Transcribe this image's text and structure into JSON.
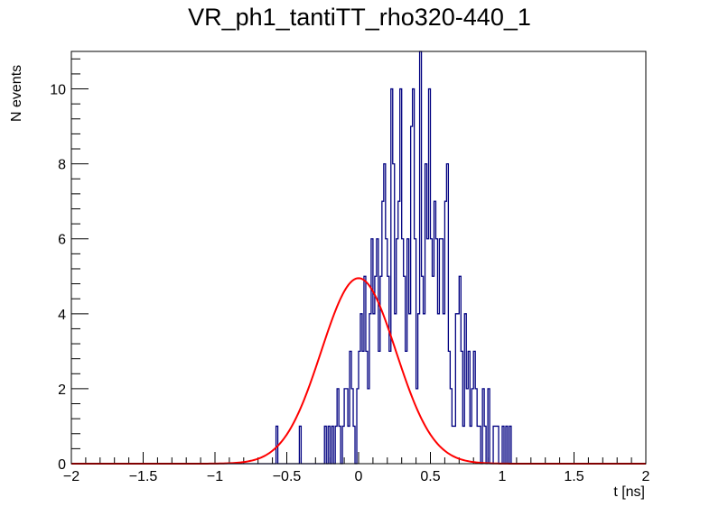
{
  "chart_data": {
    "type": "bar",
    "title": "VR_ph1_tantiTT_rho320-440_1",
    "xlabel": "t [ns]",
    "ylabel": "N events",
    "xlim": [
      -2,
      2
    ],
    "ylim": [
      0,
      11
    ],
    "xticks": [
      -2,
      -1.5,
      -1,
      -0.5,
      0,
      0.5,
      1,
      1.5,
      2
    ],
    "xtick_labels": [
      "−2",
      "−1.5",
      "−1",
      "−0.5",
      "0",
      "0.5",
      "1",
      "1.5",
      "2"
    ],
    "yticks": [
      0,
      2,
      4,
      6,
      8,
      10
    ],
    "ytick_labels": [
      "0",
      "2",
      "4",
      "6",
      "8",
      "10"
    ],
    "histogram": {
      "name": "data",
      "color": "#000080",
      "bin_low": -2,
      "bin_width": 0.0125,
      "counts": [
        0,
        0,
        0,
        0,
        0,
        0,
        0,
        0,
        0,
        0,
        0,
        0,
        0,
        0,
        0,
        0,
        0,
        0,
        0,
        0,
        0,
        0,
        0,
        0,
        0,
        0,
        0,
        0,
        0,
        0,
        0,
        0,
        0,
        0,
        0,
        0,
        0,
        0,
        0,
        0,
        0,
        0,
        0,
        0,
        0,
        0,
        0,
        0,
        0,
        0,
        0,
        0,
        0,
        0,
        0,
        0,
        0,
        0,
        0,
        0,
        0,
        0,
        0,
        0,
        0,
        0,
        0,
        0,
        0,
        0,
        0,
        0,
        0,
        0,
        0,
        0,
        0,
        0,
        0,
        0,
        0,
        0,
        0,
        0,
        0,
        0,
        0,
        0,
        0,
        0,
        0,
        0,
        0,
        0,
        0,
        0,
        0,
        0,
        0,
        0,
        0,
        0,
        0,
        0,
        0,
        0,
        0,
        0,
        0,
        0,
        0,
        0,
        0,
        0,
        1,
        0,
        0,
        0,
        0,
        0,
        0,
        0,
        0,
        0,
        0,
        0,
        0,
        1,
        0,
        0,
        0,
        0,
        0,
        0,
        0,
        0,
        0,
        0,
        0,
        0,
        0,
        1,
        0,
        1,
        0,
        1,
        0,
        1,
        2,
        1,
        0,
        1,
        2,
        2,
        1,
        3,
        2,
        1,
        0,
        2,
        3,
        4,
        3,
        5,
        3,
        2,
        4,
        6,
        4,
        5,
        6,
        3,
        5,
        7,
        8,
        6,
        5,
        3,
        10,
        8,
        4,
        6,
        7,
        10,
        6,
        5,
        3,
        6,
        4,
        9,
        10,
        6,
        2,
        4,
        11,
        5,
        4,
        8,
        6,
        10,
        6,
        5,
        7,
        6,
        4,
        6,
        6,
        4,
        7,
        8,
        3,
        2,
        1,
        1,
        4,
        4,
        5,
        3,
        1,
        4,
        2,
        3,
        1,
        2,
        3,
        2,
        1,
        1,
        0,
        2,
        1,
        0,
        2,
        0,
        0,
        1,
        1,
        1,
        0,
        0,
        1,
        0,
        1,
        0,
        1,
        0,
        0,
        0,
        0,
        0,
        0,
        0,
        0,
        0,
        0,
        0,
        0,
        0,
        0,
        0,
        0,
        0,
        0,
        0,
        0,
        0,
        0,
        0,
        0,
        0,
        0,
        0,
        0,
        0,
        0,
        0,
        0,
        0,
        0,
        0,
        0,
        0,
        0,
        0,
        0,
        0,
        0,
        0,
        0,
        0,
        0,
        0,
        0,
        0,
        0,
        0,
        0,
        0,
        0,
        0,
        0,
        0,
        0,
        0,
        0,
        0,
        0,
        0,
        0,
        0,
        0,
        0,
        0,
        0,
        0,
        0,
        0,
        0,
        0,
        0
      ]
    },
    "fit": {
      "name": "gaussian fit",
      "color": "#ff0000",
      "function": "gauss",
      "amplitude": 4.95,
      "mean": 0.0,
      "sigma": 0.26
    }
  }
}
